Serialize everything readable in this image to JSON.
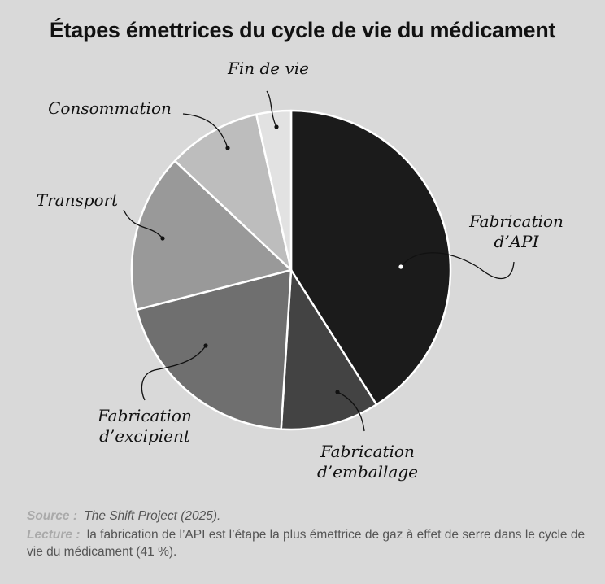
{
  "title": "Étapes émettrices du cycle de vie du médicament",
  "chart_data": {
    "type": "pie",
    "title": "Étapes émettrices du cycle de vie du médicament",
    "start_angle_deg": 0,
    "direction": "clockwise",
    "slices": [
      {
        "label": "Fabrication d’API",
        "value": 41,
        "color": "#1b1b1b"
      },
      {
        "label": "Fabrication d’emballage",
        "value": 10,
        "color": "#434343"
      },
      {
        "label": "Fabrication d’excipient",
        "value": 20,
        "color": "#6f6f6f"
      },
      {
        "label": "Transport",
        "value": 16,
        "color": "#999999"
      },
      {
        "label": "Consommation",
        "value": 9.5,
        "color": "#bdbdbd"
      },
      {
        "label": "Fin de vie",
        "value": 3.5,
        "color": "#e2e2e2"
      }
    ]
  },
  "labels": {
    "api_line1": "Fabrication",
    "api_line2": "d’API",
    "emballage_line1": "Fabrication",
    "emballage_line2": "d’emballage",
    "excipient_line1": "Fabrication",
    "excipient_line2": "d’excipient",
    "transport": "Transport",
    "consommation": "Consommation",
    "fin_de_vie": "Fin de vie"
  },
  "footer": {
    "source_kw": "Source :",
    "source_text": "The Shift Project (2025).",
    "lecture_kw": "Lecture :",
    "lecture_text": "la fabrication de l’API est l’étape la plus émettrice de gaz à effet de serre dans le cycle de vie du médicament (41 %)."
  }
}
